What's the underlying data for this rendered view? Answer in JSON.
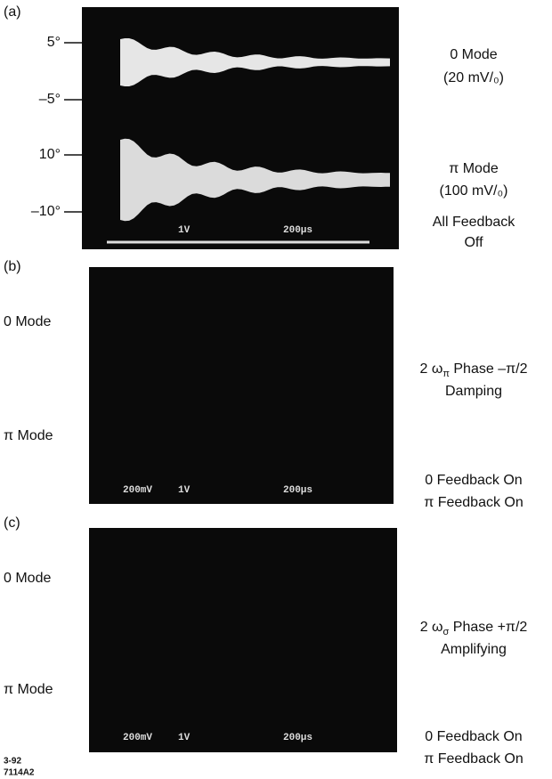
{
  "panels": [
    {
      "label": "(a)",
      "axis_labels": [
        "5°",
        "–5°",
        "10°",
        "–10°"
      ],
      "right_labels": [
        "0 Mode",
        "(20 mV/₀)",
        "π Mode",
        "(100 mV/₀)",
        "All Feedback",
        "Off"
      ],
      "scope_readout": [
        "1V",
        "200μs"
      ]
    },
    {
      "label": "(b)",
      "left_labels": [
        "0 Mode",
        "π Mode"
      ],
      "phase_label": {
        "main": "2 ω",
        "sub": "π",
        "rest": " Phase –π/2"
      },
      "right_labels": [
        "Damping",
        "0 Feedback On",
        "π Feedback On"
      ],
      "scope_readout": [
        "200mV",
        "1V",
        "200μs"
      ]
    },
    {
      "label": "(c)",
      "left_labels": [
        "0 Mode",
        "π Mode"
      ],
      "phase_label": {
        "main": "2 ω",
        "sub": "σ",
        "rest": " Phase +π/2"
      },
      "right_labels": [
        "Amplifying",
        "0 Feedback On",
        "π Feedback On"
      ],
      "scope_readout": [
        "200mV",
        "1V",
        "200μs"
      ]
    }
  ],
  "footer": [
    "3-92",
    "7114A2"
  ]
}
